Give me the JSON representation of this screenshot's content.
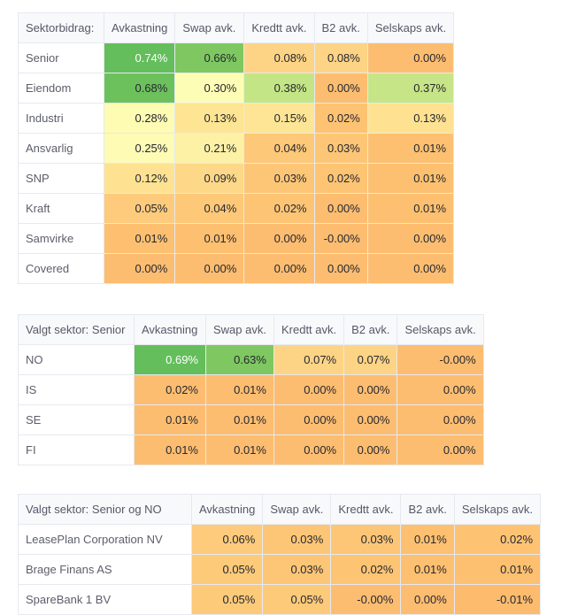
{
  "palette": {
    "green_dark": "#63be5b",
    "green_mid": "#7fc861",
    "green_light": "#c4e585",
    "yellow_pale": "#fefdb5",
    "yellow": "#fee594",
    "orange_light": "#fdd485",
    "orange": "#fdbd70"
  },
  "tables": [
    {
      "columns": [
        "Sektorbidrag:",
        "Avkastning",
        "Swap avk.",
        "Kredtt avk.",
        "B2 avk.",
        "Selskaps avk."
      ],
      "rows": [
        {
          "label": "Senior",
          "values": [
            "0.74%",
            "0.66%",
            "0.08%",
            "0.08%",
            "0.00%"
          ],
          "colors": [
            "#63be5b",
            "#7fc861",
            "#fdd485",
            "#fdd485",
            "#fdbd70"
          ]
        },
        {
          "label": "Eiendom",
          "values": [
            "0.68%",
            "0.30%",
            "0.38%",
            "0.00%",
            "0.37%"
          ],
          "colors": [
            "#6cc15d",
            "#fefdb5",
            "#c4e585",
            "#fdbd70",
            "#c6e586"
          ]
        },
        {
          "label": "Industri",
          "values": [
            "0.28%",
            "0.13%",
            "0.15%",
            "0.02%",
            "0.13%"
          ],
          "colors": [
            "#fefbb2",
            "#fee594",
            "#fee596",
            "#fdc373",
            "#fee291"
          ]
        },
        {
          "label": "Ansvarlig",
          "values": [
            "0.25%",
            "0.21%",
            "0.04%",
            "0.03%",
            "0.01%"
          ],
          "colors": [
            "#fefbb5",
            "#fdf1a6",
            "#fdc878",
            "#fdc676",
            "#fdc070"
          ]
        },
        {
          "label": "SNP",
          "values": [
            "0.12%",
            "0.09%",
            "0.03%",
            "0.02%",
            "0.01%"
          ],
          "colors": [
            "#fee292",
            "#fdd888",
            "#fdc676",
            "#fdc474",
            "#fdc070"
          ]
        },
        {
          "label": "Kraft",
          "values": [
            "0.05%",
            "0.04%",
            "0.02%",
            "0.00%",
            "0.01%"
          ],
          "colors": [
            "#fdcb7b",
            "#fdc878",
            "#fdc474",
            "#fdbd70",
            "#fdc070"
          ]
        },
        {
          "label": "Samvirke",
          "values": [
            "0.01%",
            "0.01%",
            "0.00%",
            "-0.00%",
            "0.00%"
          ],
          "colors": [
            "#fdc070",
            "#fdc070",
            "#fdbd70",
            "#fdbd70",
            "#fdbd70"
          ]
        },
        {
          "label": "Covered",
          "values": [
            "0.00%",
            "0.00%",
            "0.00%",
            "0.00%",
            "0.00%"
          ],
          "colors": [
            "#fdbd70",
            "#fdbd70",
            "#fdbd70",
            "#fdbd70",
            "#fdbd70"
          ]
        }
      ]
    },
    {
      "columns": [
        "Valgt sektor: Senior",
        "Avkastning",
        "Swap avk.",
        "Kredtt avk.",
        "B2 avk.",
        "Selskaps avk."
      ],
      "rows": [
        {
          "label": "NO",
          "values": [
            "0.69%",
            "0.63%",
            "0.07%",
            "0.07%",
            "-0.00%"
          ],
          "colors": [
            "#63be5b",
            "#7fc861",
            "#fdd485",
            "#fdd485",
            "#fdbd70"
          ]
        },
        {
          "label": "IS",
          "values": [
            "0.02%",
            "0.01%",
            "0.00%",
            "0.00%",
            "0.00%"
          ],
          "colors": [
            "#fdbd70",
            "#fdbd70",
            "#fdbd70",
            "#fdbd70",
            "#fdbd70"
          ]
        },
        {
          "label": "SE",
          "values": [
            "0.01%",
            "0.01%",
            "0.00%",
            "0.00%",
            "0.00%"
          ],
          "colors": [
            "#fdbd70",
            "#fdbd70",
            "#fdbd70",
            "#fdbd70",
            "#fdbd70"
          ]
        },
        {
          "label": "FI",
          "values": [
            "0.01%",
            "0.01%",
            "0.00%",
            "0.00%",
            "0.00%"
          ],
          "colors": [
            "#fdbd70",
            "#fdbd70",
            "#fdbd70",
            "#fdbd70",
            "#fdbd70"
          ]
        }
      ]
    },
    {
      "columns": [
        "Valgt sektor: Senior og NO",
        "Avkastning",
        "Swap avk.",
        "Kredtt avk.",
        "B2 avk.",
        "Selskaps avk."
      ],
      "rows": [
        {
          "label": "LeasePlan Corporation NV",
          "values": [
            "0.06%",
            "0.03%",
            "0.03%",
            "0.01%",
            "0.02%"
          ],
          "colors": [
            "#fdcb7b",
            "#fdc676",
            "#fdc676",
            "#fdc070",
            "#fdc373"
          ]
        },
        {
          "label": "Brage Finans AS",
          "values": [
            "0.05%",
            "0.03%",
            "0.02%",
            "0.01%",
            "0.01%"
          ],
          "colors": [
            "#fdca7a",
            "#fdc676",
            "#fdc474",
            "#fdc070",
            "#fdc070"
          ]
        },
        {
          "label": "SpareBank 1 BV",
          "values": [
            "0.05%",
            "0.05%",
            "-0.00%",
            "0.00%",
            "-0.01%"
          ],
          "colors": [
            "#fdca7a",
            "#fdca7a",
            "#fdbd70",
            "#fdbd70",
            "#fdbb6e"
          ]
        }
      ]
    }
  ]
}
